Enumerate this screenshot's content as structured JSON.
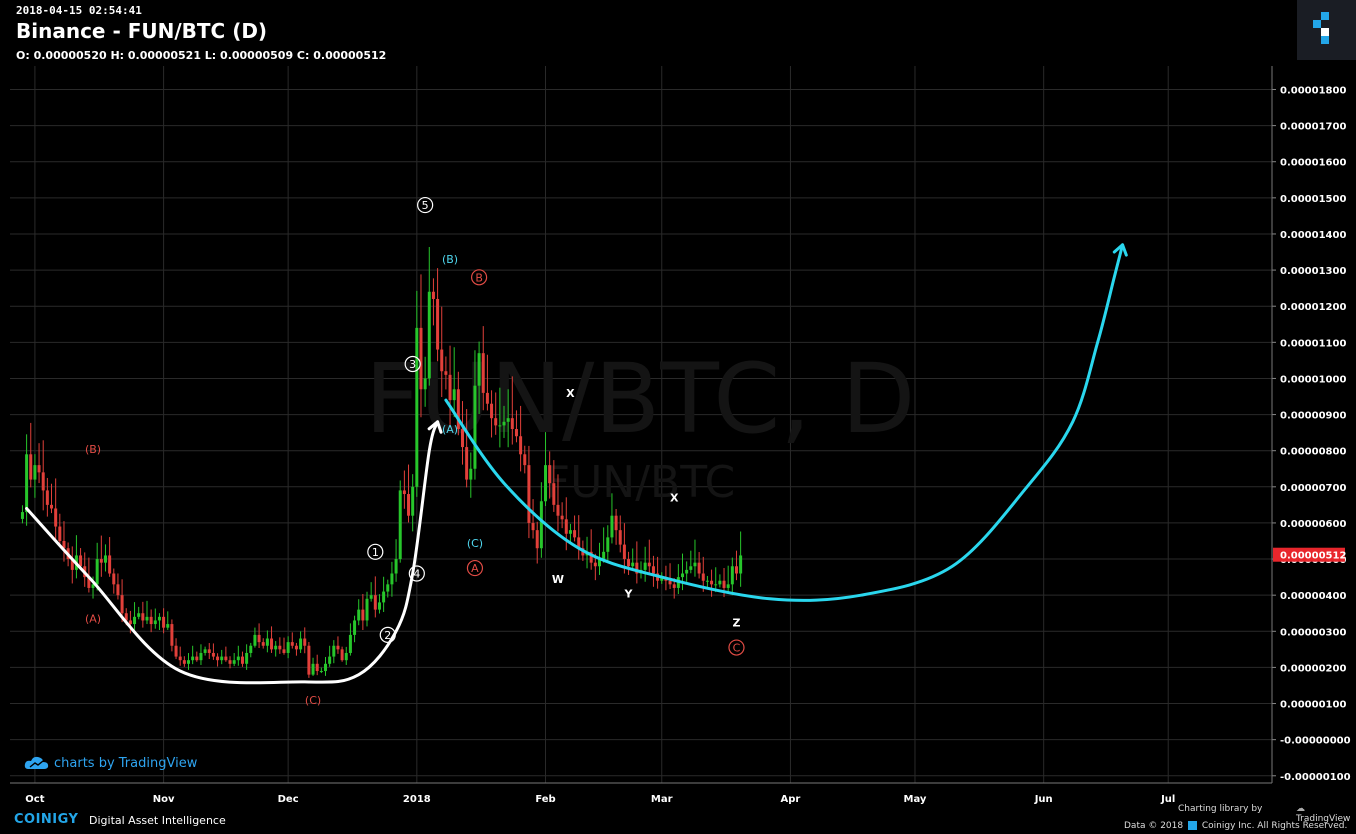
{
  "header": {
    "timestamp": "2018-04-15 02:54:41",
    "title": "Binance - FUN/BTC (D)",
    "ohlc": "O: 0.00000520 H: 0.00000521 L: 0.00000509 C: 0.00000512"
  },
  "watermark": {
    "big": "FUN/BTC, D",
    "small": "FUN/BTC"
  },
  "footer": {
    "tradingview_credit": "charts by TradingView",
    "brand": "COINIGY",
    "tagline": "Digital Asset Intelligence",
    "charting_library": "Charting library by",
    "tradingview_small": "TradingView",
    "data_credit": "Data © 2018",
    "rights": "Coinigy Inc. All Rights Reserved."
  },
  "colors": {
    "up": "#27c62b",
    "down": "#e2403a",
    "grid": "#2a2a2a",
    "last_price_bg": "#e8262c",
    "white_curve": "#ffffff",
    "cyan_curve": "#2ad7ee",
    "label_red": "#e24c45",
    "label_cyan": "#4fd6ee"
  },
  "chart_data": {
    "type": "candlestick",
    "title": "Binance - FUN/BTC (D)",
    "x_tick_labels": [
      "Oct",
      "Nov",
      "Dec",
      "2018",
      "Feb",
      "Mar",
      "Apr",
      "May",
      "Jun",
      "Jul"
    ],
    "x_tick_dates": [
      "2017-10-01",
      "2017-11-01",
      "2017-12-01",
      "2018-01-01",
      "2018-02-01",
      "2018-03-01",
      "2018-04-01",
      "2018-05-01",
      "2018-06-01",
      "2018-07-01"
    ],
    "x_range": [
      "2017-09-25",
      "2018-07-26"
    ],
    "y_tick_labels": [
      "0.00001800",
      "0.00001700",
      "0.00001600",
      "0.00001500",
      "0.00001400",
      "0.00001300",
      "0.00001200",
      "0.00001100",
      "0.00001000",
      "0.00000900",
      "0.00000800",
      "0.00000700",
      "0.00000600",
      "0.00000500",
      "0.00000400",
      "0.00000300",
      "0.00000200",
      "0.00000100",
      "-0.00000000",
      "-0.00000100"
    ],
    "ylim": [
      -1.2e-06,
      1.865e-05
    ],
    "last_price": "0.00000512",
    "close_series_approx": {
      "start_date": "2017-09-28",
      "step_days": 1,
      "close": [
        6.3,
        7.9,
        7.2,
        7.6,
        7.4,
        6.9,
        6.5,
        6.4,
        5.9,
        5.5,
        5.3,
        5.0,
        4.7,
        5.1,
        4.8,
        4.5,
        4.2,
        4.3,
        5.0,
        4.9,
        5.1,
        4.6,
        4.3,
        4.0,
        3.5,
        3.3,
        3.2,
        3.4,
        3.5,
        3.3,
        3.4,
        3.2,
        3.3,
        3.4,
        3.1,
        3.2,
        2.6,
        2.3,
        2.2,
        2.1,
        2.2,
        2.3,
        2.2,
        2.4,
        2.5,
        2.4,
        2.3,
        2.2,
        2.3,
        2.2,
        2.1,
        2.2,
        2.3,
        2.1,
        2.4,
        2.6,
        2.9,
        2.7,
        2.6,
        2.8,
        2.5,
        2.6,
        2.5,
        2.4,
        2.7,
        2.6,
        2.5,
        2.8,
        2.6,
        1.8,
        2.1,
        1.9,
        1.9,
        2.1,
        2.3,
        2.6,
        2.5,
        2.2,
        2.4,
        2.9,
        3.3,
        3.6,
        3.3,
        3.9,
        4.0,
        3.6,
        3.8,
        4.1,
        4.3,
        4.6,
        5.0,
        6.9,
        6.8,
        6.2,
        7.0,
        11.4,
        9.7,
        10.0,
        12.4,
        12.2,
        10.8,
        10.2,
        10.1,
        9.4,
        9.7,
        8.6,
        8.1,
        7.2,
        7.5,
        9.8,
        10.7,
        9.6,
        9.3,
        8.9,
        8.7,
        8.7,
        8.8,
        8.9,
        8.6,
        8.4,
        7.9,
        7.6,
        6.0,
        5.8,
        5.3,
        6.6,
        7.6,
        7.1,
        6.5,
        6.2,
        6.1,
        5.7,
        5.8,
        5.6,
        5.3,
        5.1,
        5.2,
        4.9,
        4.8,
        5.0,
        5.2,
        5.6,
        6.2,
        5.8,
        5.4,
        5.0,
        4.8,
        4.9,
        4.6,
        4.7,
        4.9,
        4.8,
        4.6,
        4.4,
        4.5,
        4.4,
        4.3,
        4.2,
        4.5,
        4.6,
        4.7,
        4.8,
        4.9,
        4.6,
        4.4,
        4.4,
        4.3,
        4.3,
        4.4,
        4.2,
        4.3,
        4.8,
        4.6,
        5.1
      ]
    },
    "wave_labels": [
      {
        "text": "(B)",
        "color": "red",
        "date": "2017-10-15",
        "price": 8.05e-06
      },
      {
        "text": "(A)",
        "color": "red",
        "date": "2017-10-15",
        "price": 3.35e-06
      },
      {
        "text": "(C)",
        "color": "red",
        "date": "2017-12-07",
        "price": 1.1e-06
      },
      {
        "text": "1",
        "color": "white",
        "circled": true,
        "date": "2017-12-22",
        "price": 5.2e-06
      },
      {
        "text": "2",
        "color": "white",
        "circled": true,
        "date": "2017-12-25",
        "price": 2.9e-06
      },
      {
        "text": "3",
        "color": "white",
        "circled": true,
        "date": "2017-12-31",
        "price": 1.04e-05
      },
      {
        "text": "4",
        "color": "white",
        "circled": true,
        "date": "2018-01-01",
        "price": 4.6e-06
      },
      {
        "text": "5",
        "color": "white",
        "circled": true,
        "date": "2018-01-03",
        "price": 1.48e-05
      },
      {
        "text": "(B)",
        "color": "cyan",
        "date": "2018-01-09",
        "price": 1.33e-05
      },
      {
        "text": "(A)",
        "color": "cyan",
        "date": "2018-01-09",
        "price": 8.6e-06
      },
      {
        "text": "(C)",
        "color": "cyan",
        "date": "2018-01-15",
        "price": 5.45e-06
      },
      {
        "text": "B",
        "color": "red",
        "circled": true,
        "date": "2018-01-16",
        "price": 1.28e-05
      },
      {
        "text": "A",
        "color": "red",
        "circled": true,
        "date": "2018-01-15",
        "price": 4.75e-06
      },
      {
        "text": "X",
        "color": "white",
        "date": "2018-02-07",
        "price": 9.6e-06
      },
      {
        "text": "W",
        "color": "white",
        "date": "2018-02-04",
        "price": 4.45e-06
      },
      {
        "text": "X",
        "color": "white",
        "date": "2018-03-04",
        "price": 6.7e-06
      },
      {
        "text": "Y",
        "color": "white",
        "date": "2018-02-21",
        "price": 4.05e-06
      },
      {
        "text": "Z",
        "color": "white",
        "date": "2018-03-19",
        "price": 3.25e-06
      },
      {
        "text": "C",
        "color": "red",
        "circled": true,
        "date": "2018-03-19",
        "price": 2.55e-06
      }
    ],
    "drawn_paths": [
      {
        "name": "rounding-bottom-curve",
        "color": "white",
        "arrow": true,
        "points": [
          [
            "2017-09-29",
            6.4e-06
          ],
          [
            "2017-10-14",
            4.5e-06
          ],
          [
            "2017-11-05",
            1.9e-06
          ],
          [
            "2017-12-05",
            1.6e-06
          ],
          [
            "2017-12-18",
            1.8e-06
          ],
          [
            "2017-12-27",
            3e-06
          ],
          [
            "2017-12-31",
            4.6e-06
          ],
          [
            "2018-01-04",
            8e-06
          ],
          [
            "2018-01-06",
            8.8e-06
          ]
        ]
      },
      {
        "name": "cup-curve",
        "color": "cyan",
        "arrow": true,
        "points": [
          [
            "2018-01-08",
            9.4e-06
          ],
          [
            "2018-01-22",
            7.1e-06
          ],
          [
            "2018-02-09",
            5.3e-06
          ],
          [
            "2018-03-01",
            4.5e-06
          ],
          [
            "2018-03-27",
            3.9e-06
          ],
          [
            "2018-04-18",
            4e-06
          ],
          [
            "2018-05-10",
            4.8e-06
          ],
          [
            "2018-05-28",
            7e-06
          ],
          [
            "2018-06-08",
            8.8e-06
          ],
          [
            "2018-06-14",
            1.1e-05
          ],
          [
            "2018-06-18",
            1.28e-05
          ],
          [
            "2018-06-20",
            1.37e-05
          ]
        ]
      }
    ]
  }
}
